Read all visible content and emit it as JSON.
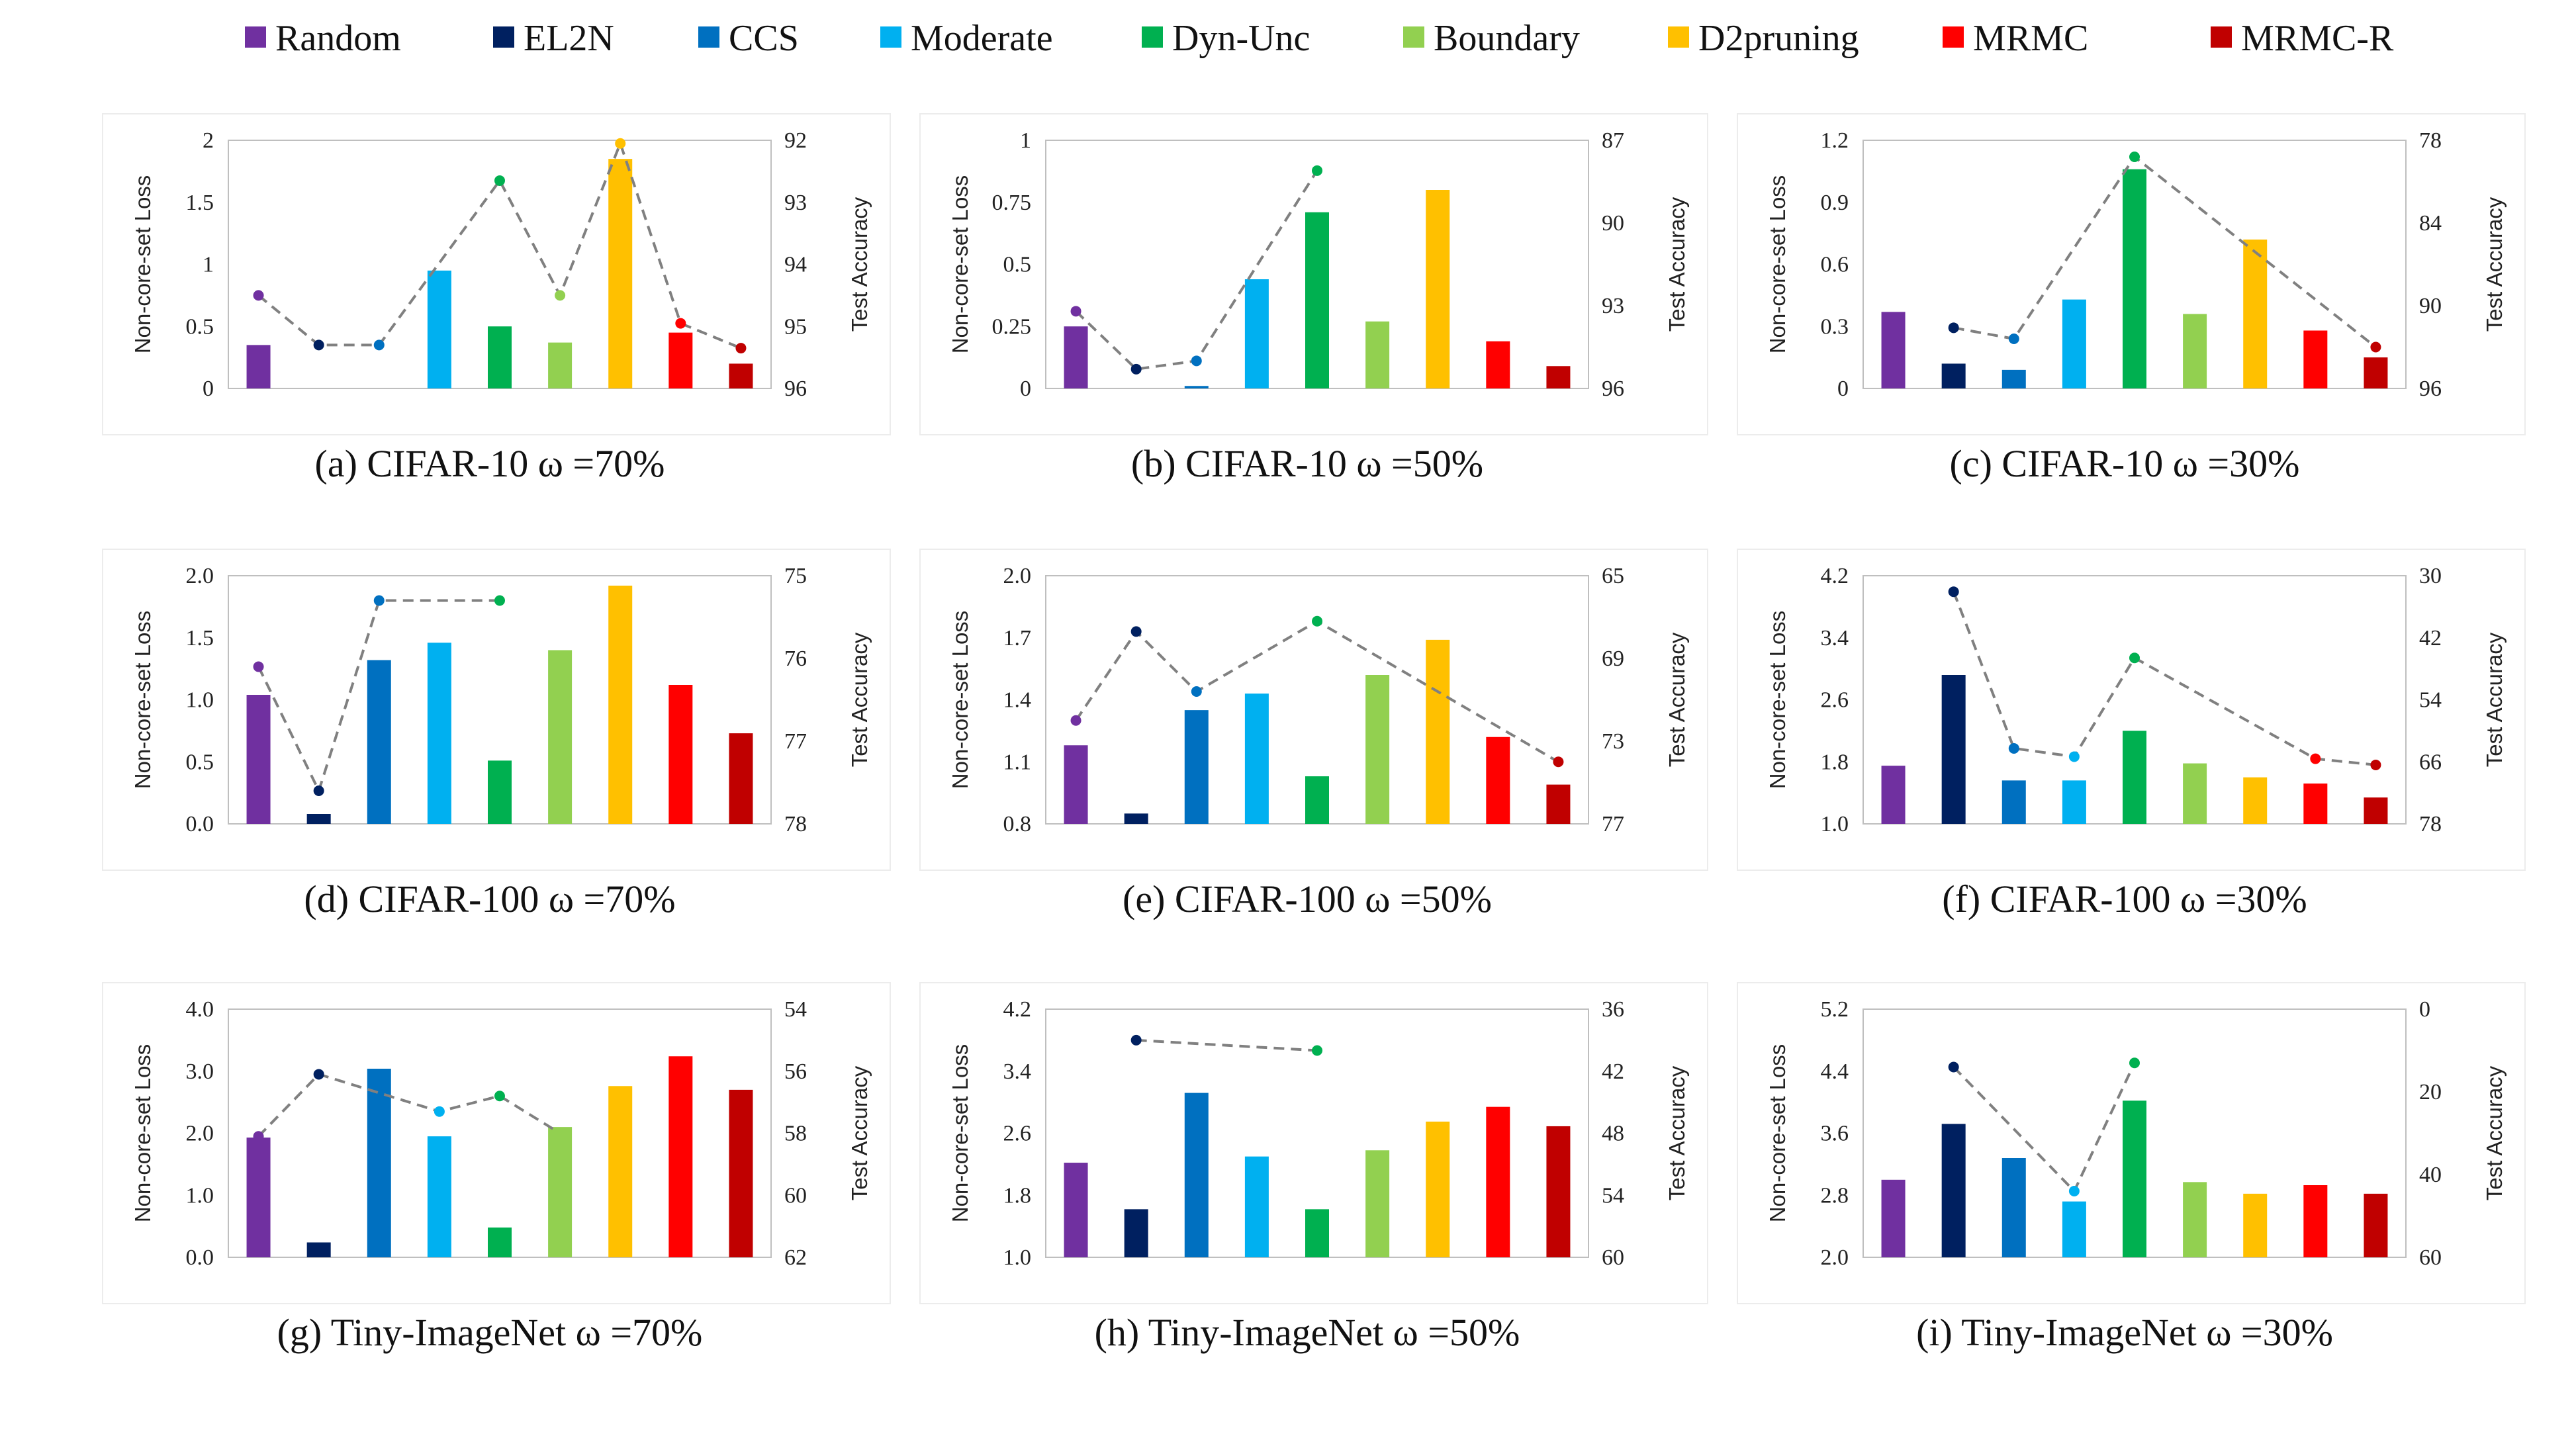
{
  "colors": {
    "Random": "#7030A0",
    "EL2N": "#002060",
    "CCS": "#0070C0",
    "Moderate": "#00B0F0",
    "Dyn-Unc": "#00B050",
    "Boundary": "#92D050",
    "D2pruning": "#FFC000",
    "MRMC": "#FF0000",
    "MRMC-R": "#C00000",
    "trend_line": "#808080"
  },
  "legend": [
    "Random",
    "EL2N",
    "CCS",
    "Moderate",
    "Dyn-Unc",
    "Boundary",
    "D2pruning",
    "MRMC",
    "MRMC-R"
  ],
  "chart_data": [
    {
      "type": "bar+line",
      "caption": "(a)  CIFAR-10 ω =70%",
      "ylabel": "Non-core-set  Loss",
      "y2label": "Test Accuracy",
      "categories": [
        "Random",
        "EL2N",
        "CCS",
        "Moderate",
        "Dyn-Unc",
        "Boundary",
        "D2pruning",
        "MRMC",
        "MRMC-R"
      ],
      "yticks": [
        "0",
        "0.5",
        "1",
        "1.5",
        "2"
      ],
      "ylim": [
        0,
        2
      ],
      "y2ticks": [
        "92",
        "93",
        "94",
        "95",
        "96"
      ],
      "y2lim": [
        92,
        96
      ],
      "y2_reversed": true,
      "loss": [
        0.35,
        0,
        0,
        0.95,
        0.5,
        0.37,
        1.85,
        0.45,
        0.2
      ],
      "accuracy": [
        94.5,
        95.3,
        95.3,
        null,
        92.65,
        94.5,
        92.05,
        94.95,
        95.35
      ],
      "grid": false
    },
    {
      "type": "bar+line",
      "caption": "(b)  CIFAR-10 ω =50%",
      "ylabel": "Non-core-set  Loss",
      "y2label": "Test Accuracy",
      "categories": [
        "Random",
        "EL2N",
        "CCS",
        "Moderate",
        "Dyn-Unc",
        "Boundary",
        "D2pruning",
        "MRMC",
        "MRMC-R"
      ],
      "yticks": [
        "0",
        "0.25",
        "0.5",
        "0.75",
        "1"
      ],
      "ylim": [
        0,
        1
      ],
      "y2ticks": [
        "87",
        "90",
        "93",
        "96"
      ],
      "y2lim": [
        87,
        96
      ],
      "y2_reversed": true,
      "loss": [
        0.25,
        0,
        0.01,
        0.44,
        0.71,
        0.27,
        0.8,
        0.19,
        0.09
      ],
      "accuracy": [
        93.2,
        95.3,
        95.0,
        null,
        88.1,
        null,
        null,
        null,
        null
      ],
      "grid": false
    },
    {
      "type": "bar+line",
      "caption": "(c)  CIFAR-10 ω =30%",
      "ylabel": "Non-core-set  Loss",
      "y2label": "Test Accuracy",
      "categories": [
        "Random",
        "EL2N",
        "CCS",
        "Moderate",
        "Dyn-Unc",
        "Boundary",
        "D2pruning",
        "MRMC",
        "MRMC-R"
      ],
      "yticks": [
        "0",
        "0.3",
        "0.6",
        "0.9",
        "1.2"
      ],
      "ylim": [
        0,
        1.2
      ],
      "y2ticks": [
        "78",
        "84",
        "90",
        "96"
      ],
      "y2lim": [
        78,
        96
      ],
      "y2_reversed": true,
      "loss": [
        0.37,
        0.12,
        0.09,
        0.43,
        1.06,
        0.36,
        0.72,
        0.28,
        0.15
      ],
      "accuracy": [
        null,
        91.6,
        92.4,
        null,
        79.2,
        null,
        null,
        null,
        93.0
      ],
      "grid": false
    },
    {
      "type": "bar+line",
      "caption": "(d)  CIFAR-100 ω =70%",
      "ylabel": "Non-core-set  Loss",
      "y2label": "Test Accuracy",
      "categories": [
        "Random",
        "EL2N",
        "CCS",
        "Moderate",
        "Dyn-Unc",
        "Boundary",
        "D2pruning",
        "MRMC",
        "MRMC-R"
      ],
      "yticks": [
        "0.0",
        "0.5",
        "1.0",
        "1.5",
        "2.0"
      ],
      "ylim": [
        0,
        2
      ],
      "y2ticks": [
        "75",
        "76",
        "77",
        "78"
      ],
      "y2lim": [
        75,
        78
      ],
      "y2_reversed": true,
      "loss": [
        1.04,
        0.08,
        1.32,
        1.46,
        0.51,
        1.4,
        1.92,
        1.12,
        0.73
      ],
      "accuracy": [
        76.1,
        77.6,
        75.3,
        null,
        75.3,
        null,
        null,
        null,
        null
      ],
      "grid": false
    },
    {
      "type": "bar+line",
      "caption": "(e)  CIFAR-100 ω =50%",
      "ylabel": "Non-core-set  Loss",
      "y2label": "Test Accuracy",
      "categories": [
        "Random",
        "EL2N",
        "CCS",
        "Moderate",
        "Dyn-Unc",
        "Boundary",
        "D2pruning",
        "MRMC",
        "MRMC-R"
      ],
      "yticks": [
        "0.8",
        "1.1",
        "1.4",
        "1.7",
        "2.0"
      ],
      "ylim": [
        0.8,
        2.0
      ],
      "y2ticks": [
        "65",
        "69",
        "73",
        "77"
      ],
      "y2lim": [
        65,
        77
      ],
      "y2_reversed": true,
      "loss": [
        1.18,
        0.85,
        1.35,
        1.43,
        1.03,
        1.52,
        1.69,
        1.22,
        0.99
      ],
      "accuracy": [
        72.0,
        67.7,
        70.6,
        null,
        67.2,
        null,
        null,
        null,
        74.0
      ],
      "grid": false
    },
    {
      "type": "bar+line",
      "caption": "(f)  CIFAR-100 ω =30%",
      "ylabel": "Non-core-set  Loss",
      "y2label": "Test Accuracy",
      "categories": [
        "Random",
        "EL2N",
        "CCS",
        "Moderate",
        "Dyn-Unc",
        "Boundary",
        "D2pruning",
        "MRMC",
        "MRMC-R"
      ],
      "yticks": [
        "1.0",
        "1.8",
        "2.6",
        "3.4",
        "4.2"
      ],
      "ylim": [
        1.0,
        4.2
      ],
      "y2ticks": [
        "30",
        "42",
        "54",
        "66",
        "78"
      ],
      "y2lim": [
        30,
        78
      ],
      "y2_reversed": true,
      "loss": [
        1.75,
        2.92,
        1.56,
        1.56,
        2.2,
        1.78,
        1.6,
        1.52,
        1.34
      ],
      "accuracy": [
        null,
        33.1,
        63.4,
        65.0,
        45.9,
        null,
        null,
        65.4,
        66.6
      ],
      "grid": false
    },
    {
      "type": "bar+line",
      "caption": "(g)  Tiny-ImageNet ω =70%",
      "ylabel": "Non-core-set  Loss",
      "y2label": "Test Accuracy",
      "categories": [
        "Random",
        "EL2N",
        "CCS",
        "Moderate",
        "Dyn-Unc",
        "Boundary",
        "D2pruning",
        "MRMC",
        "MRMC-R"
      ],
      "yticks": [
        "0.0",
        "1.0",
        "2.0",
        "3.0",
        "4.0"
      ],
      "ylim": [
        0,
        4
      ],
      "y2ticks": [
        "54",
        "56",
        "58",
        "60",
        "62"
      ],
      "y2lim": [
        54,
        62
      ],
      "y2_reversed": true,
      "loss": [
        1.93,
        0.24,
        3.04,
        1.95,
        0.48,
        2.1,
        2.76,
        3.24,
        2.7
      ],
      "accuracy": [
        58.1,
        56.1,
        null,
        57.3,
        56.8,
        58.0,
        null,
        null,
        null
      ],
      "grid": false
    },
    {
      "type": "bar+line",
      "caption": "(h)  Tiny-ImageNet ω =50%",
      "ylabel": "Non-core-set  Loss",
      "y2label": "Test Accuracy",
      "categories": [
        "Random",
        "EL2N",
        "CCS",
        "Moderate",
        "Dyn-Unc",
        "Boundary",
        "D2pruning",
        "MRMC",
        "MRMC-R"
      ],
      "yticks": [
        "1.0",
        "1.8",
        "2.6",
        "3.4",
        "4.2"
      ],
      "ylim": [
        1.0,
        4.2
      ],
      "y2ticks": [
        "36",
        "42",
        "48",
        "54",
        "60"
      ],
      "y2lim": [
        36,
        60
      ],
      "y2_reversed": true,
      "loss": [
        2.22,
        1.62,
        3.12,
        2.3,
        1.62,
        2.38,
        2.75,
        2.94,
        2.69
      ],
      "accuracy": [
        null,
        39.0,
        null,
        null,
        40.0,
        null,
        null,
        null,
        null
      ],
      "grid": false
    },
    {
      "type": "bar+line",
      "caption": "(i)  Tiny-ImageNet ω =30%",
      "ylabel": "Non-core-set  Loss",
      "y2label": "Test Accuracy",
      "categories": [
        "Random",
        "EL2N",
        "CCS",
        "Moderate",
        "Dyn-Unc",
        "Boundary",
        "D2pruning",
        "MRMC",
        "MRMC-R"
      ],
      "yticks": [
        "2.0",
        "2.8",
        "3.6",
        "4.4",
        "5.2"
      ],
      "ylim": [
        2.0,
        5.2
      ],
      "y2ticks": [
        "0",
        "20",
        "40",
        "60"
      ],
      "y2lim": [
        0,
        60
      ],
      "y2_reversed": true,
      "loss": [
        3.0,
        3.72,
        3.28,
        2.72,
        4.02,
        2.97,
        2.82,
        2.93,
        2.82
      ],
      "accuracy": [
        null,
        14.0,
        null,
        44.0,
        13.0,
        null,
        null,
        null,
        null
      ],
      "grid": false
    }
  ]
}
